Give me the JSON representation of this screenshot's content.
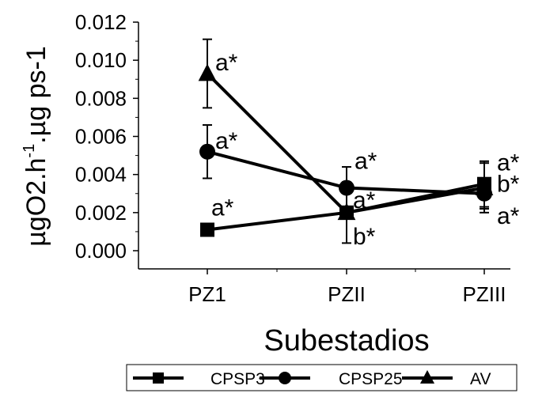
{
  "chart_data": {
    "type": "line",
    "xlabel": "Subestadios",
    "ylabel_main": "µgO2.h",
    "ylabel_sup": "-1",
    "ylabel_tail": ".µg ps-1",
    "categories": [
      "PZ1",
      "PZII",
      "PZIII"
    ],
    "ylim": [
      0,
      0.012
    ],
    "yticks": [
      "0.000",
      "0.002",
      "0.004",
      "0.006",
      "0.008",
      "0.010",
      "0.012"
    ],
    "grid": false,
    "legend_position": "bottom",
    "series": [
      {
        "name": "CPSP3",
        "marker": "square",
        "values": [
          0.0011,
          0.002,
          0.0035
        ],
        "err": [
          0.0001,
          0.0003,
          0.0012
        ],
        "labels": [
          "a*",
          "b*",
          "b*"
        ]
      },
      {
        "name": "CPSP25",
        "marker": "circle",
        "values": [
          0.0052,
          0.0033,
          0.003
        ],
        "err": [
          0.0014,
          0.0011,
          0.0008
        ],
        "labels": [
          "a*",
          "a*",
          "a*"
        ]
      },
      {
        "name": "AV",
        "marker": "triangle",
        "values": [
          0.0093,
          0.002,
          0.0033
        ],
        "err": [
          0.0018,
          0.0016,
          0.0013
        ],
        "labels": [
          "a*",
          "a*",
          "a*"
        ]
      }
    ]
  }
}
